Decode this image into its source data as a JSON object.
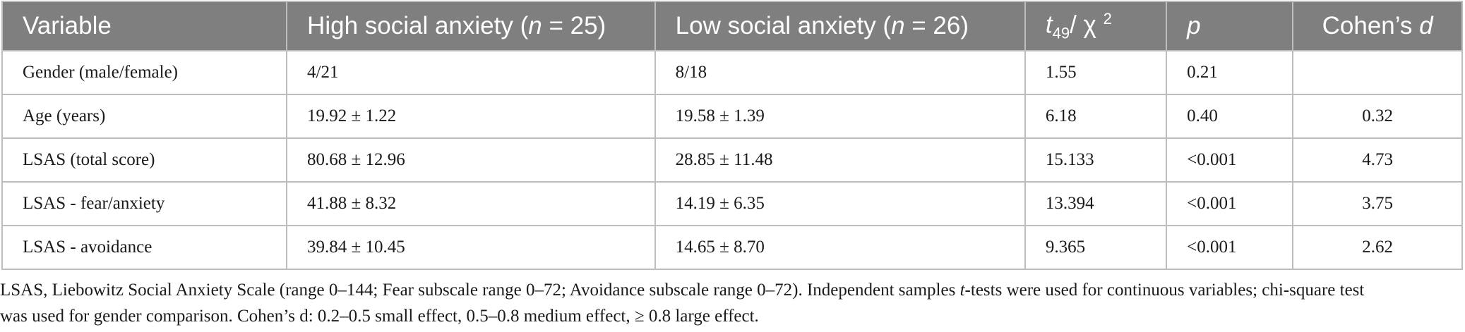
{
  "table": {
    "header": {
      "variable": "Variable",
      "high_prefix": "High social anxiety (",
      "high_n": "n",
      "high_suffix": " = 25)",
      "low_prefix": "Low social anxiety (",
      "low_n": "n",
      "low_suffix": " = 26)",
      "stat_t": "t",
      "stat_sub": "49",
      "stat_rest": "/ χ ",
      "stat_sup": "2",
      "p": "p",
      "cohens_prefix": "Cohen’s ",
      "cohens_d": "d"
    },
    "rows": [
      {
        "variable": "Gender (male/female)",
        "high": "4/21",
        "low": "8/18",
        "stat": "1.55",
        "p": "0.21",
        "d": ""
      },
      {
        "variable": "Age (years)",
        "high": "19.92 ± 1.22",
        "low": "19.58 ± 1.39",
        "stat": "6.18",
        "p": "0.40",
        "d": "0.32"
      },
      {
        "variable": "LSAS (total score)",
        "high": "80.68 ± 12.96",
        "low": "28.85 ± 11.48",
        "stat": "15.133",
        "p": "<0.001",
        "d": "4.73"
      },
      {
        "variable": "LSAS - fear/anxiety",
        "high": "41.88 ± 8.32",
        "low": "14.19 ± 6.35",
        "stat": "13.394",
        "p": "<0.001",
        "d": "3.75"
      },
      {
        "variable": "LSAS - avoidance",
        "high": "39.84 ± 10.45",
        "low": "14.65 ± 8.70",
        "stat": "9.365",
        "p": "<0.001",
        "d": "2.62"
      }
    ]
  },
  "footnote": {
    "line1_a": "LSAS, Liebowitz Social Anxiety Scale (range 0–144; Fear subscale range 0–72; Avoidance subscale range 0–72). Independent samples ",
    "line1_t": "t",
    "line1_b": "-tests were used for continuous variables; chi-square test",
    "line2": "was used for gender comparison. Cohen’s d: 0.2–0.5 small effect, 0.5–0.8 medium effect, ≥ 0.8 large effect."
  },
  "colors": {
    "header_bg": "#7f7f7f",
    "header_text": "#ffffff",
    "grid": "#bdbdbd",
    "body_text": "#1a1a1a"
  }
}
